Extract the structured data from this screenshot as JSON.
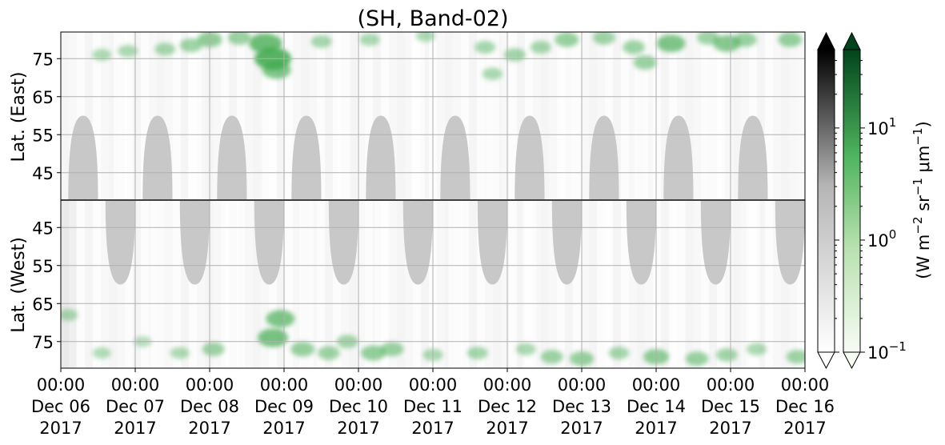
{
  "chart_data": {
    "type": "heatmap",
    "title": "(SH, Band-02)",
    "x_range": [
      "2017-12-06 00:00",
      "2017-12-16 00:00"
    ],
    "x_ticks": [
      {
        "time": "00:00",
        "date": "Dec 06",
        "year": "2017"
      },
      {
        "time": "00:00",
        "date": "Dec 07",
        "year": "2017"
      },
      {
        "time": "00:00",
        "date": "Dec 08",
        "year": "2017"
      },
      {
        "time": "00:00",
        "date": "Dec 09",
        "year": "2017"
      },
      {
        "time": "00:00",
        "date": "Dec 10",
        "year": "2017"
      },
      {
        "time": "00:00",
        "date": "Dec 11",
        "year": "2017"
      },
      {
        "time": "00:00",
        "date": "Dec 12",
        "year": "2017"
      },
      {
        "time": "00:00",
        "date": "Dec 13",
        "year": "2017"
      },
      {
        "time": "00:00",
        "date": "Dec 14",
        "year": "2017"
      },
      {
        "time": "00:00",
        "date": "Dec 15",
        "year": "2017"
      },
      {
        "time": "00:00",
        "date": "Dec 16",
        "year": "2017"
      }
    ],
    "panels": [
      {
        "name": "east",
        "ylabel": "Lat. (East)",
        "ylim": [
          38,
          82
        ],
        "y_ticks": [
          "45",
          "55",
          "65",
          "75"
        ],
        "y_tick_values": [
          45,
          55,
          65,
          75
        ],
        "direction": "up"
      },
      {
        "name": "west",
        "ylabel": "Lat. (West)",
        "ylim": [
          38,
          82
        ],
        "y_ticks": [
          "75",
          "65",
          "55",
          "45"
        ],
        "y_tick_values": [
          75,
          65,
          55,
          45
        ],
        "direction": "down"
      }
    ],
    "grid": true,
    "colorbars": [
      {
        "name": "gray",
        "scale": "log",
        "range": [
          0.1,
          50
        ],
        "extend": "both",
        "colors": [
          "#ffffff",
          "#000000"
        ]
      },
      {
        "name": "green",
        "scale": "log",
        "range": [
          0.1,
          50
        ],
        "extend": "both",
        "colors": [
          "#f7fcf5",
          "#00441b"
        ],
        "ticks": [
          {
            "value": 10,
            "base": "10",
            "exp": "1"
          },
          {
            "value": 1,
            "base": "10",
            "exp": "0"
          },
          {
            "value": 0.1,
            "base": "10",
            "exp": "−1"
          }
        ],
        "label_parts": [
          "(W m",
          "−2",
          " sr",
          "−1",
          " μm",
          "−1",
          ")"
        ]
      }
    ],
    "sunlit_regions": [
      {
        "panel": "east",
        "center_day": 0.3,
        "min_lat": 60
      },
      {
        "panel": "east",
        "center_day": 1.3,
        "min_lat": 60
      },
      {
        "panel": "east",
        "center_day": 2.3,
        "min_lat": 60
      },
      {
        "panel": "east",
        "center_day": 3.3,
        "min_lat": 60
      },
      {
        "panel": "east",
        "center_day": 4.3,
        "min_lat": 60
      },
      {
        "panel": "east",
        "center_day": 5.3,
        "min_lat": 60
      },
      {
        "panel": "east",
        "center_day": 6.3,
        "min_lat": 60
      },
      {
        "panel": "east",
        "center_day": 7.3,
        "min_lat": 60
      },
      {
        "panel": "east",
        "center_day": 8.3,
        "min_lat": 60
      },
      {
        "panel": "east",
        "center_day": 9.3,
        "min_lat": 60
      },
      {
        "panel": "west",
        "center_day": 0.8,
        "min_lat": 60
      },
      {
        "panel": "west",
        "center_day": 1.8,
        "min_lat": 60
      },
      {
        "panel": "west",
        "center_day": 2.8,
        "min_lat": 60
      },
      {
        "panel": "west",
        "center_day": 3.8,
        "min_lat": 60
      },
      {
        "panel": "west",
        "center_day": 4.8,
        "min_lat": 60
      },
      {
        "panel": "west",
        "center_day": 5.8,
        "min_lat": 60
      },
      {
        "panel": "west",
        "center_day": 6.8,
        "min_lat": 60
      },
      {
        "panel": "west",
        "center_day": 7.8,
        "min_lat": 60
      },
      {
        "panel": "west",
        "center_day": 8.8,
        "min_lat": 60
      },
      {
        "panel": "west",
        "center_day": 9.8,
        "min_lat": 60
      }
    ],
    "sunlit_color": "#c8c8c8",
    "green_patches": [
      {
        "panel": "east",
        "day": 0.55,
        "lat": 76.0,
        "value": 0.8
      },
      {
        "panel": "east",
        "day": 0.9,
        "lat": 77.0,
        "value": 0.9
      },
      {
        "panel": "east",
        "day": 1.4,
        "lat": 77.5,
        "value": 1.0
      },
      {
        "panel": "east",
        "day": 1.75,
        "lat": 78.5,
        "value": 1.2
      },
      {
        "panel": "east",
        "day": 2.0,
        "lat": 80.0,
        "value": 1.5
      },
      {
        "panel": "east",
        "day": 2.4,
        "lat": 80.5,
        "value": 1.3
      },
      {
        "panel": "east",
        "day": 2.75,
        "lat": 79.0,
        "value": 2.5
      },
      {
        "panel": "east",
        "day": 2.85,
        "lat": 75.0,
        "value": 3.0
      },
      {
        "panel": "east",
        "day": 2.9,
        "lat": 72.0,
        "value": 2.0
      },
      {
        "panel": "east",
        "day": 3.5,
        "lat": 79.5,
        "value": 1.0
      },
      {
        "panel": "east",
        "day": 4.15,
        "lat": 80.0,
        "value": 0.9
      },
      {
        "panel": "east",
        "day": 4.9,
        "lat": 81.0,
        "value": 0.8
      },
      {
        "panel": "east",
        "day": 5.7,
        "lat": 78.0,
        "value": 1.0
      },
      {
        "panel": "east",
        "day": 5.8,
        "lat": 71.0,
        "value": 0.9
      },
      {
        "panel": "east",
        "day": 6.1,
        "lat": 76.0,
        "value": 1.1
      },
      {
        "panel": "east",
        "day": 6.45,
        "lat": 78.0,
        "value": 1.0
      },
      {
        "panel": "east",
        "day": 6.8,
        "lat": 80.0,
        "value": 1.4
      },
      {
        "panel": "east",
        "day": 7.3,
        "lat": 80.5,
        "value": 1.2
      },
      {
        "panel": "east",
        "day": 7.7,
        "lat": 78.0,
        "value": 1.2
      },
      {
        "panel": "east",
        "day": 7.85,
        "lat": 74.0,
        "value": 1.3
      },
      {
        "panel": "east",
        "day": 8.2,
        "lat": 79.0,
        "value": 2.0
      },
      {
        "panel": "east",
        "day": 8.7,
        "lat": 80.5,
        "value": 1.2
      },
      {
        "panel": "east",
        "day": 8.95,
        "lat": 79.0,
        "value": 1.8
      },
      {
        "panel": "east",
        "day": 9.2,
        "lat": 80.0,
        "value": 1.3
      },
      {
        "panel": "east",
        "day": 9.8,
        "lat": 80.0,
        "value": 1.4
      },
      {
        "panel": "west",
        "day": 0.1,
        "lat": 68.0,
        "value": 0.8
      },
      {
        "panel": "west",
        "day": 0.55,
        "lat": 78.0,
        "value": 0.7
      },
      {
        "panel": "west",
        "day": 1.1,
        "lat": 75.0,
        "value": 0.6
      },
      {
        "panel": "west",
        "day": 1.6,
        "lat": 78.0,
        "value": 0.8
      },
      {
        "panel": "west",
        "day": 2.05,
        "lat": 77.0,
        "value": 1.2
      },
      {
        "panel": "west",
        "day": 2.85,
        "lat": 74.0,
        "value": 2.2
      },
      {
        "panel": "west",
        "day": 2.95,
        "lat": 69.0,
        "value": 2.0
      },
      {
        "panel": "west",
        "day": 3.25,
        "lat": 77.0,
        "value": 1.4
      },
      {
        "panel": "west",
        "day": 3.6,
        "lat": 78.0,
        "value": 1.2
      },
      {
        "panel": "west",
        "day": 3.85,
        "lat": 75.0,
        "value": 1.1
      },
      {
        "panel": "west",
        "day": 4.2,
        "lat": 78.0,
        "value": 1.5
      },
      {
        "panel": "west",
        "day": 4.45,
        "lat": 77.0,
        "value": 1.3
      },
      {
        "panel": "west",
        "day": 5.0,
        "lat": 78.5,
        "value": 0.9
      },
      {
        "panel": "west",
        "day": 5.6,
        "lat": 78.0,
        "value": 1.0
      },
      {
        "panel": "west",
        "day": 6.25,
        "lat": 77.0,
        "value": 0.9
      },
      {
        "panel": "west",
        "day": 6.6,
        "lat": 79.0,
        "value": 1.2
      },
      {
        "panel": "west",
        "day": 7.0,
        "lat": 79.5,
        "value": 1.4
      },
      {
        "panel": "west",
        "day": 7.5,
        "lat": 78.0,
        "value": 1.0
      },
      {
        "panel": "west",
        "day": 8.0,
        "lat": 79.0,
        "value": 1.6
      },
      {
        "panel": "west",
        "day": 8.55,
        "lat": 79.5,
        "value": 1.3
      },
      {
        "panel": "west",
        "day": 8.95,
        "lat": 78.5,
        "value": 1.1
      },
      {
        "panel": "west",
        "day": 9.35,
        "lat": 77.0,
        "value": 0.9
      },
      {
        "panel": "west",
        "day": 9.9,
        "lat": 79.0,
        "value": 1.2
      }
    ],
    "green_color": "#3da94c"
  }
}
